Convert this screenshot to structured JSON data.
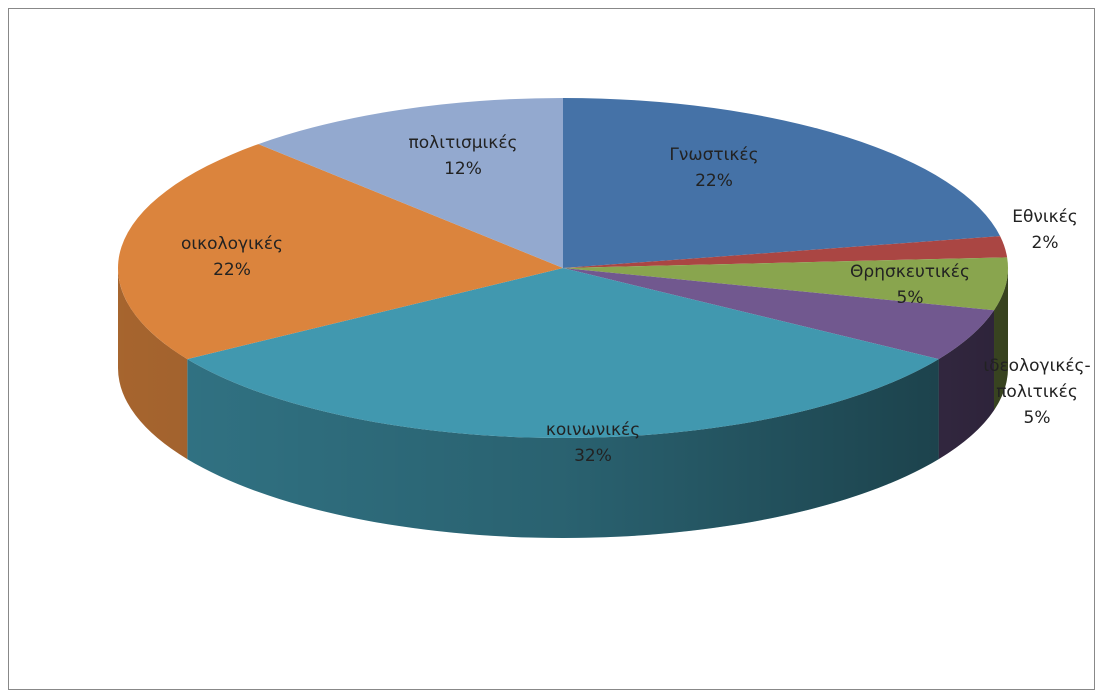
{
  "chart_data": {
    "type": "pie",
    "categories": [
      "Γνωστικές",
      "Εθνικές",
      "Θρησκευτικές",
      "ιδεολογικές-πολιτικές",
      "κοινωνικές",
      "οικολογικές",
      "πολιτισμικές"
    ],
    "values": [
      22,
      2,
      5,
      5,
      32,
      22,
      12
    ],
    "value_labels": [
      "22%",
      "2%",
      "5%",
      "5%",
      "32%",
      "22%",
      "12%"
    ],
    "colors": [
      "#4572a7",
      "#aa4643",
      "#89a54e",
      "#71588f",
      "#4198af",
      "#db843d",
      "#93a9cf"
    ]
  }
}
